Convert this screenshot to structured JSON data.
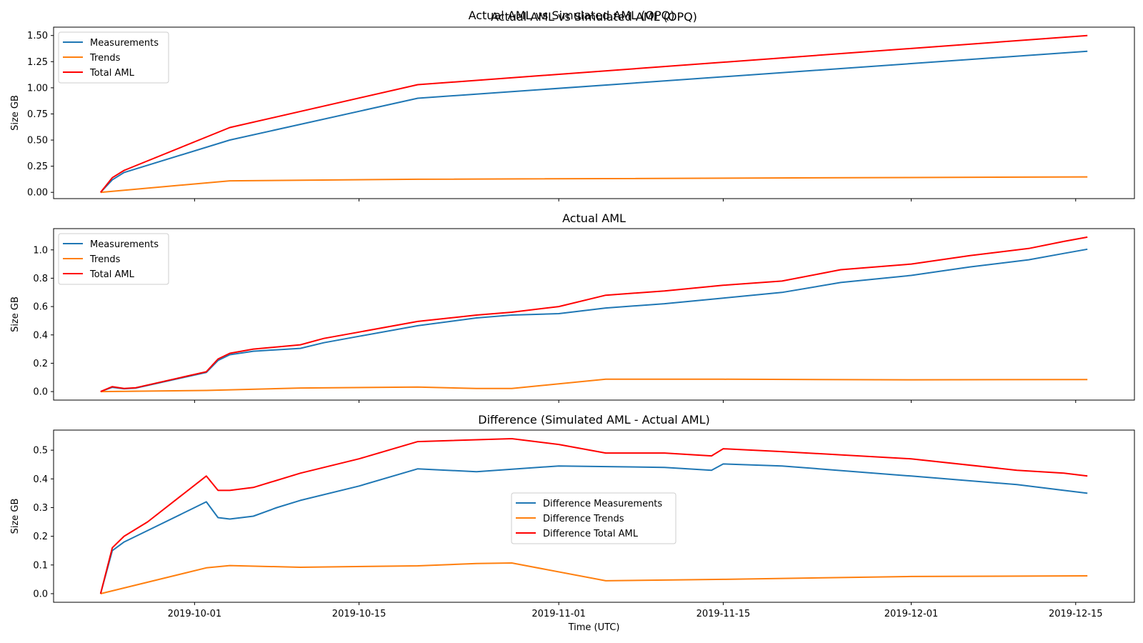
{
  "figure": {
    "suptitle": "Actual AML vs Simulated AML (OPQ)",
    "xlabel": "Time (UTC)",
    "x_tick_labels": [
      "2019-10-01",
      "2019-10-15",
      "2019-11-01",
      "2019-11-15",
      "2019-12-01",
      "2019-12-15"
    ]
  },
  "chart_data": [
    {
      "type": "line",
      "title": "Actual AML vs Simulated AML (OPQ)",
      "ylabel": "Size GB",
      "xlim": [
        "2019-09-19",
        "2019-12-20"
      ],
      "ylim": [
        -0.06,
        1.58
      ],
      "yticks": [
        0.0,
        0.25,
        0.5,
        0.75,
        1.0,
        1.25,
        1.5
      ],
      "ytick_labels": [
        "0.00",
        "0.25",
        "0.50",
        "0.75",
        "1.00",
        "1.25",
        "1.50"
      ],
      "grid": false,
      "legend_position": "upper-left",
      "series": [
        {
          "name": "Measurements",
          "color": "#1f77b4",
          "x": [
            "2019-09-23",
            "2019-09-24",
            "2019-09-25",
            "2019-10-04",
            "2019-10-20",
            "2019-12-16"
          ],
          "y": [
            0.0,
            0.12,
            0.19,
            0.5,
            0.9,
            1.35
          ]
        },
        {
          "name": "Trends",
          "color": "#ff7f0e",
          "x": [
            "2019-09-23",
            "2019-10-04",
            "2019-10-20",
            "2019-12-16"
          ],
          "y": [
            0.0,
            0.11,
            0.125,
            0.148
          ]
        },
        {
          "name": "Total AML",
          "color": "#ff0000",
          "x": [
            "2019-09-23",
            "2019-09-24",
            "2019-09-25",
            "2019-10-04",
            "2019-10-20",
            "2019-12-16"
          ],
          "y": [
            0.0,
            0.14,
            0.21,
            0.62,
            1.03,
            1.5
          ]
        }
      ]
    },
    {
      "type": "line",
      "title": "Actual AML",
      "ylabel": "Size GB",
      "xlim": [
        "2019-09-19",
        "2019-12-20"
      ],
      "ylim": [
        -0.06,
        1.15
      ],
      "yticks": [
        0.0,
        0.2,
        0.4,
        0.6,
        0.8,
        1.0
      ],
      "ytick_labels": [
        "0.0",
        "0.2",
        "0.4",
        "0.6",
        "0.8",
        "1.0"
      ],
      "grid": false,
      "legend_position": "upper-left",
      "series": [
        {
          "name": "Measurements",
          "color": "#1f77b4",
          "x": [
            "2019-09-23",
            "2019-09-24",
            "2019-09-25",
            "2019-09-26",
            "2019-10-02",
            "2019-10-03",
            "2019-10-04",
            "2019-10-06",
            "2019-10-10",
            "2019-10-12",
            "2019-10-15",
            "2019-10-20",
            "2019-10-25",
            "2019-10-28",
            "2019-11-01",
            "2019-11-05",
            "2019-11-10",
            "2019-11-15",
            "2019-11-20",
            "2019-11-25",
            "2019-12-01",
            "2019-12-06",
            "2019-12-11",
            "2019-12-14",
            "2019-12-16"
          ],
          "y": [
            0.0,
            0.03,
            0.02,
            0.025,
            0.135,
            0.22,
            0.26,
            0.285,
            0.305,
            0.345,
            0.39,
            0.465,
            0.52,
            0.54,
            0.55,
            0.59,
            0.62,
            0.66,
            0.7,
            0.77,
            0.82,
            0.88,
            0.93,
            0.975,
            1.005
          ]
        },
        {
          "name": "Trends",
          "color": "#ff7f0e",
          "x": [
            "2019-09-23",
            "2019-10-02",
            "2019-10-10",
            "2019-10-20",
            "2019-10-25",
            "2019-10-28",
            "2019-11-05",
            "2019-11-15",
            "2019-12-01",
            "2019-12-16"
          ],
          "y": [
            0.0,
            0.008,
            0.025,
            0.032,
            0.022,
            0.022,
            0.087,
            0.087,
            0.083,
            0.085
          ]
        },
        {
          "name": "Total AML",
          "color": "#ff0000",
          "x": [
            "2019-09-23",
            "2019-09-24",
            "2019-09-25",
            "2019-09-26",
            "2019-10-02",
            "2019-10-03",
            "2019-10-04",
            "2019-10-06",
            "2019-10-10",
            "2019-10-12",
            "2019-10-15",
            "2019-10-20",
            "2019-10-25",
            "2019-10-28",
            "2019-11-01",
            "2019-11-05",
            "2019-11-10",
            "2019-11-15",
            "2019-11-20",
            "2019-11-25",
            "2019-12-01",
            "2019-12-06",
            "2019-12-11",
            "2019-12-14",
            "2019-12-16"
          ],
          "y": [
            0.0,
            0.035,
            0.022,
            0.027,
            0.14,
            0.23,
            0.27,
            0.3,
            0.33,
            0.375,
            0.42,
            0.495,
            0.54,
            0.56,
            0.6,
            0.68,
            0.71,
            0.75,
            0.78,
            0.86,
            0.9,
            0.96,
            1.01,
            1.06,
            1.09
          ]
        }
      ]
    },
    {
      "type": "line",
      "title": "Difference (Simulated AML - Actual AML)",
      "ylabel": "Size GB",
      "xlim": [
        "2019-09-19",
        "2019-12-20"
      ],
      "ylim": [
        -0.03,
        0.57
      ],
      "yticks": [
        0.0,
        0.1,
        0.2,
        0.3,
        0.4,
        0.5
      ],
      "ytick_labels": [
        "0.0",
        "0.1",
        "0.2",
        "0.3",
        "0.4",
        "0.5"
      ],
      "grid": false,
      "legend_position": "center",
      "series": [
        {
          "name": "Difference Measurements",
          "color": "#1f77b4",
          "x": [
            "2019-09-23",
            "2019-09-24",
            "2019-09-25",
            "2019-09-27",
            "2019-10-01",
            "2019-10-02",
            "2019-10-03",
            "2019-10-04",
            "2019-10-06",
            "2019-10-08",
            "2019-10-10",
            "2019-10-15",
            "2019-10-20",
            "2019-10-25",
            "2019-11-01",
            "2019-11-10",
            "2019-11-14",
            "2019-11-15",
            "2019-11-20",
            "2019-12-01",
            "2019-12-10",
            "2019-12-14",
            "2019-12-16"
          ],
          "y": [
            0.0,
            0.15,
            0.18,
            0.22,
            0.3,
            0.32,
            0.265,
            0.26,
            0.27,
            0.3,
            0.325,
            0.375,
            0.435,
            0.425,
            0.445,
            0.44,
            0.43,
            0.452,
            0.445,
            0.41,
            0.38,
            0.36,
            0.35
          ]
        },
        {
          "name": "Difference Trends",
          "color": "#ff7f0e",
          "x": [
            "2019-09-23",
            "2019-10-02",
            "2019-10-04",
            "2019-10-10",
            "2019-10-20",
            "2019-10-25",
            "2019-10-28",
            "2019-11-05",
            "2019-11-15",
            "2019-12-01",
            "2019-12-16"
          ],
          "y": [
            0.0,
            0.09,
            0.098,
            0.092,
            0.097,
            0.105,
            0.107,
            0.045,
            0.05,
            0.06,
            0.062
          ]
        },
        {
          "name": "Difference Total AML",
          "color": "#ff0000",
          "x": [
            "2019-09-23",
            "2019-09-24",
            "2019-09-25",
            "2019-09-27",
            "2019-10-02",
            "2019-10-03",
            "2019-10-04",
            "2019-10-06",
            "2019-10-10",
            "2019-10-15",
            "2019-10-20",
            "2019-10-28",
            "2019-11-01",
            "2019-11-05",
            "2019-11-10",
            "2019-11-14",
            "2019-11-15",
            "2019-11-20",
            "2019-12-01",
            "2019-12-10",
            "2019-12-14",
            "2019-12-16"
          ],
          "y": [
            0.0,
            0.16,
            0.2,
            0.25,
            0.41,
            0.36,
            0.36,
            0.37,
            0.42,
            0.47,
            0.53,
            0.54,
            0.52,
            0.49,
            0.49,
            0.48,
            0.505,
            0.495,
            0.47,
            0.43,
            0.42,
            0.41
          ]
        }
      ]
    }
  ]
}
